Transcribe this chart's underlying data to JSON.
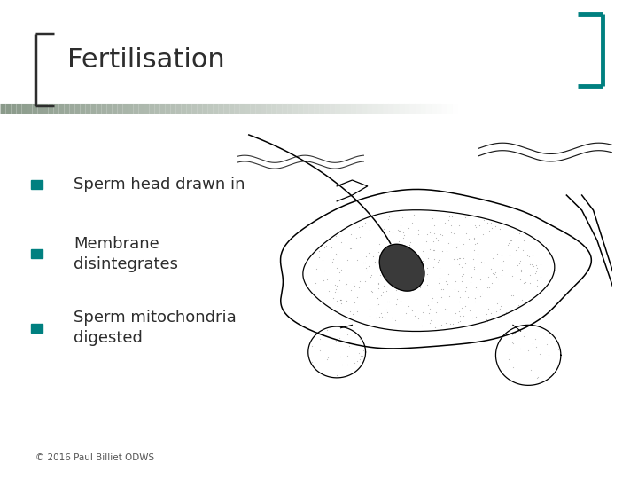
{
  "title": "Fertilisation",
  "title_color": "#2d2d2d",
  "title_fontsize": 22,
  "bracket_color_left": "#2d2d2d",
  "bracket_color_right": "#008080",
  "separator_color": "#8a9a8a",
  "bullet_color": "#008080",
  "bullet_items": [
    "Sperm head drawn in",
    "Membrane\ndisintegrates",
    "Sperm mitochondria\ndigested"
  ],
  "bullet_fontsize": 13,
  "copyright_text": "© 2016 Paul Billiet ODWS",
  "copyright_fontsize": 7.5,
  "copyright_color": "#555555",
  "bg_color": "#ffffff"
}
